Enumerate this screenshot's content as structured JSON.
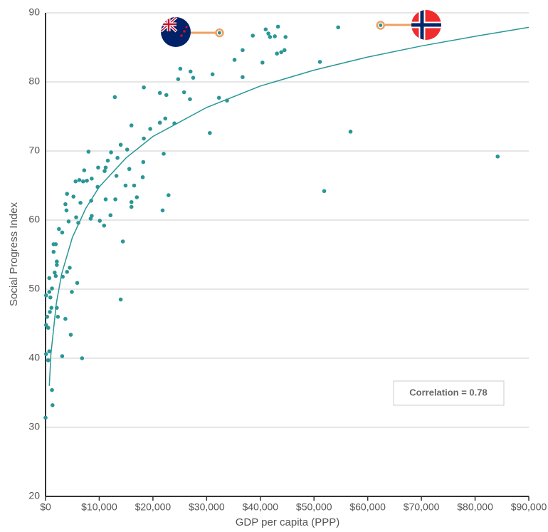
{
  "chart_data": {
    "type": "scatter",
    "xlabel": "GDP per capita (PPP)",
    "ylabel": "Social Progress Index",
    "annotation": "Correlation = 0.78",
    "xlim": [
      0,
      90000
    ],
    "ylim": [
      20,
      90
    ],
    "xticks": [
      {
        "value": 0,
        "label": "$0"
      },
      {
        "value": 10000,
        "label": "$10,000"
      },
      {
        "value": 20000,
        "label": "$20,000"
      },
      {
        "value": 30000,
        "label": "$30,000"
      },
      {
        "value": 40000,
        "label": "$40,000"
      },
      {
        "value": 50000,
        "label": "$50,000"
      },
      {
        "value": 60000,
        "label": "$60,000"
      },
      {
        "value": 70000,
        "label": "$70,000"
      },
      {
        "value": 80000,
        "label": "$80,000"
      },
      {
        "value": 90000,
        "label": "$90,000"
      }
    ],
    "yticks": [
      20,
      30,
      40,
      50,
      60,
      70,
      80,
      90
    ],
    "grid": true,
    "series": [
      {
        "color": "#2a9696",
        "x": [
          0,
          1300,
          1200,
          100,
          500,
          700,
          3100,
          6800,
          100,
          500,
          300,
          800,
          1100,
          2100,
          2300,
          3700,
          4700,
          100,
          700,
          1200,
          900,
          4900,
          5900,
          14000,
          700,
          1900,
          3200,
          4000,
          4500,
          2100,
          2100,
          1700,
          1500,
          1500,
          1900,
          14400,
          2500,
          3100,
          4300,
          6100,
          5700,
          8400,
          8600,
          10100,
          10900,
          12100,
          21800,
          3900,
          3700,
          5200,
          6500,
          8500,
          11200,
          13000,
          16000,
          16000,
          17000,
          22900,
          4000,
          5600,
          6300,
          7000,
          7700,
          8600,
          9700,
          13200,
          14900,
          16500,
          18100,
          7200,
          9800,
          11000,
          11200,
          15600,
          18200,
          11600,
          13400,
          12200,
          8000,
          15200,
          14000,
          22000,
          18300,
          19500,
          16000,
          21300,
          22300,
          24000,
          30600,
          56800,
          84200,
          51900,
          12900,
          18300,
          21300,
          22500,
          25800,
          26900,
          32300,
          33800,
          24700,
          25100,
          27000,
          27500,
          31100,
          36700,
          35200,
          36700,
          40400,
          51100,
          38600,
          41000,
          41500,
          41800,
          42700,
          43100,
          43300,
          43900,
          44500,
          44700,
          54500
        ],
        "values": [
          31.4,
          33.2,
          35.4,
          40.6,
          39.7,
          41,
          40.3,
          40,
          44.8,
          44.4,
          46,
          46.7,
          47.3,
          47.3,
          46,
          45.7,
          43.4,
          49.1,
          49.6,
          50.1,
          48.8,
          49.6,
          50.9,
          48.5,
          51.6,
          51.9,
          51.8,
          52.5,
          53.1,
          53.5,
          54,
          52.4,
          55.4,
          56.5,
          56.5,
          56.9,
          58.7,
          58.2,
          59.8,
          59.6,
          60.4,
          60.2,
          60.6,
          59.9,
          59.2,
          60.7,
          61.4,
          61.4,
          62.3,
          63.4,
          62.5,
          62.8,
          63,
          63,
          62.6,
          61.9,
          63.3,
          63.6,
          63.8,
          65.6,
          65.8,
          65.6,
          65.7,
          66,
          64.8,
          66.4,
          65,
          65,
          66.2,
          67.2,
          67.6,
          67.1,
          67.6,
          67.4,
          68.4,
          68.6,
          69,
          69.8,
          69.9,
          70.2,
          70.9,
          69.6,
          71.8,
          73.2,
          73.7,
          74.1,
          74.7,
          74,
          72.6,
          72.8,
          69.2,
          64.2,
          77.8,
          79.2,
          78.4,
          78.1,
          78.5,
          77.5,
          77.7,
          77.3,
          80.4,
          81.9,
          81.5,
          80.6,
          81.1,
          80.7,
          83.2,
          84.6,
          82.8,
          82.9,
          86.7,
          87.6,
          87,
          86.5,
          86.6,
          84.1,
          88,
          84.3,
          84.6,
          86.5,
          87.9
        ]
      },
      {
        "color": "#f0a060",
        "x": [
          32400,
          62400
        ],
        "values": [
          87.1,
          88.2
        ]
      }
    ],
    "trendline": {
      "color": "#2a9696",
      "x": [
        700,
        1000,
        2000,
        3000,
        5000,
        7500,
        10000,
        15000,
        20000,
        30000,
        40000,
        50000,
        60000,
        70000,
        80000,
        90000
      ],
      "values": [
        36,
        40.6,
        47.9,
        52.2,
        57.5,
        61.7,
        64.8,
        69,
        72.1,
        76.3,
        79.4,
        81.7,
        83.6,
        85.2,
        86.6,
        87.9
      ]
    }
  }
}
